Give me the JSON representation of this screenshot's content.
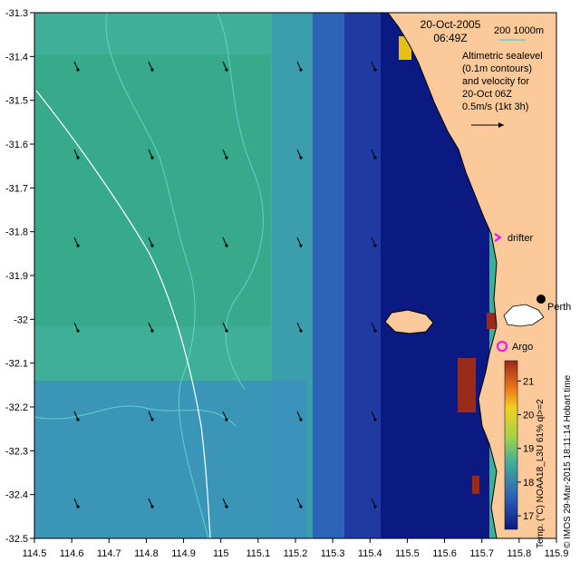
{
  "map": {
    "date": "20-Oct-2005",
    "time": "06:49Z",
    "depth_contours": "200  1000m",
    "notes": [
      "Altimetric sealevel",
      "(0.1m contours)",
      "and velocity for",
      "20-Oct 06Z",
      "0.5m/s (1kt 3h)"
    ],
    "drifter_label": "drifter",
    "argo_label": "Argo",
    "city_label": "Perth",
    "credit": "© IMOS 29-Mar-2015 18:11:14 Hobart time",
    "colorbar_label": "Temp. (°C) NOAA18_L3U 61% ql>=2",
    "colorbar_ticks": [
      "17",
      "18",
      "19",
      "20",
      "21"
    ],
    "lon_ticks": [
      "114.5",
      "114.6",
      "114.7",
      "114.8",
      "114.9",
      "115",
      "115.1",
      "115.2",
      "115.3",
      "115.4",
      "115.5",
      "115.6",
      "115.7",
      "115.8",
      "115.9"
    ],
    "lat_ticks": [
      "-31.3",
      "-31.4",
      "-31.5",
      "-31.6",
      "-31.7",
      "-31.8",
      "-31.9",
      "-32",
      "-32.1",
      "-32.2",
      "-32.3",
      "-32.4",
      "-32.5"
    ],
    "colors": {
      "land": "#fbc99a",
      "contour": "#5fd3c8",
      "drifter": "#ff00ff",
      "argo": "#ff00ff"
    }
  }
}
